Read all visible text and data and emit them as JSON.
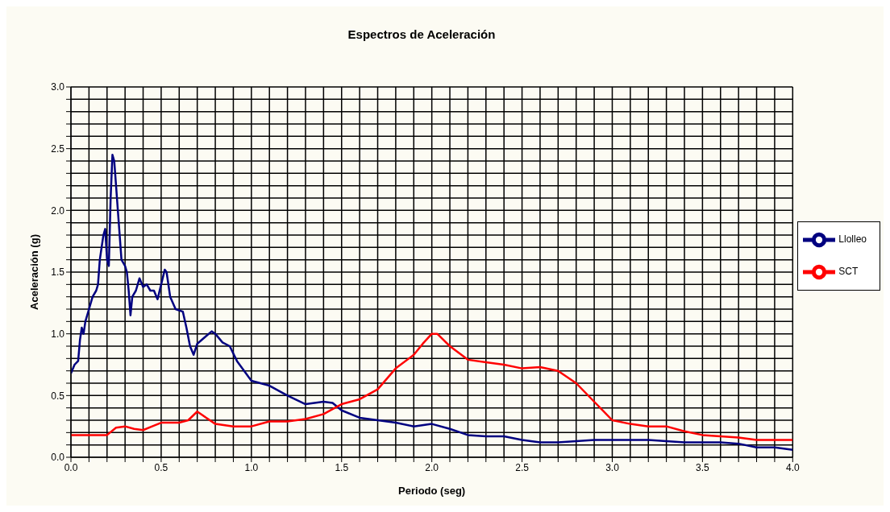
{
  "chart_data": {
    "type": "line",
    "title": "Espectros de Aceleración",
    "xlabel": "Periodo (seg)",
    "ylabel": "Aceleración (g)",
    "xlim": [
      0,
      4
    ],
    "ylim": [
      0,
      3
    ],
    "xticks": [
      {
        "value": 0,
        "label": "0.0"
      },
      {
        "value": 0.1,
        "label": null
      },
      {
        "value": 0.2,
        "label": null
      },
      {
        "value": 0.3,
        "label": null
      },
      {
        "value": 0.4,
        "label": null
      },
      {
        "value": 0.5,
        "label": "0.5"
      },
      {
        "value": 0.6,
        "label": null
      },
      {
        "value": 0.7,
        "label": null
      },
      {
        "value": 0.8,
        "label": null
      },
      {
        "value": 0.9,
        "label": null
      },
      {
        "value": 1,
        "label": "1.0"
      },
      {
        "value": 1.1,
        "label": null
      },
      {
        "value": 1.2,
        "label": null
      },
      {
        "value": 1.3,
        "label": null
      },
      {
        "value": 1.4,
        "label": null
      },
      {
        "value": 1.5,
        "label": "1.5"
      },
      {
        "value": 1.6,
        "label": null
      },
      {
        "value": 1.7,
        "label": null
      },
      {
        "value": 1.8,
        "label": null
      },
      {
        "value": 1.9,
        "label": null
      },
      {
        "value": 2,
        "label": "2.0"
      },
      {
        "value": 2.1,
        "label": null
      },
      {
        "value": 2.2,
        "label": null
      },
      {
        "value": 2.3,
        "label": null
      },
      {
        "value": 2.4,
        "label": null
      },
      {
        "value": 2.5,
        "label": "2.5"
      },
      {
        "value": 2.6,
        "label": null
      },
      {
        "value": 2.7,
        "label": null
      },
      {
        "value": 2.8,
        "label": null
      },
      {
        "value": 2.9,
        "label": null
      },
      {
        "value": 3,
        "label": "3.0"
      },
      {
        "value": 3.1,
        "label": null
      },
      {
        "value": 3.2,
        "label": null
      },
      {
        "value": 3.3,
        "label": null
      },
      {
        "value": 3.4,
        "label": null
      },
      {
        "value": 3.5,
        "label": "3.5"
      },
      {
        "value": 3.6,
        "label": null
      },
      {
        "value": 3.7,
        "label": null
      },
      {
        "value": 3.8,
        "label": null
      },
      {
        "value": 3.9,
        "label": null
      },
      {
        "value": 4,
        "label": "4.0"
      }
    ],
    "yticks": [
      {
        "value": 0,
        "label": "0.0"
      },
      {
        "value": 0.1,
        "label": null
      },
      {
        "value": 0.2,
        "label": null
      },
      {
        "value": 0.3,
        "label": null
      },
      {
        "value": 0.4,
        "label": null
      },
      {
        "value": 0.5,
        "label": "0.5"
      },
      {
        "value": 0.6,
        "label": null
      },
      {
        "value": 0.7,
        "label": null
      },
      {
        "value": 0.8,
        "label": null
      },
      {
        "value": 0.9,
        "label": null
      },
      {
        "value": 1,
        "label": "1.0"
      },
      {
        "value": 1.1,
        "label": null
      },
      {
        "value": 1.2,
        "label": null
      },
      {
        "value": 1.3,
        "label": null
      },
      {
        "value": 1.4,
        "label": null
      },
      {
        "value": 1.5,
        "label": "1.5"
      },
      {
        "value": 1.6,
        "label": null
      },
      {
        "value": 1.7,
        "label": null
      },
      {
        "value": 1.8,
        "label": null
      },
      {
        "value": 1.9,
        "label": null
      },
      {
        "value": 2,
        "label": "2.0"
      },
      {
        "value": 2.1,
        "label": null
      },
      {
        "value": 2.2,
        "label": null
      },
      {
        "value": 2.3,
        "label": null
      },
      {
        "value": 2.4,
        "label": null
      },
      {
        "value": 2.5,
        "label": "2.5"
      },
      {
        "value": 2.6,
        "label": null
      },
      {
        "value": 2.7,
        "label": null
      },
      {
        "value": 2.8,
        "label": null
      },
      {
        "value": 2.9,
        "label": null
      },
      {
        "value": 3,
        "label": "3.0"
      }
    ],
    "grid": true,
    "legend": "right",
    "marker": "none",
    "line_style": "solid",
    "series": [
      {
        "name": "Llolleo",
        "color": "#000080",
        "x": [
          0,
          0.02,
          0.04,
          0.05,
          0.06,
          0.07,
          0.08,
          0.1,
          0.12,
          0.14,
          0.15,
          0.16,
          0.18,
          0.19,
          0.2,
          0.21,
          0.22,
          0.23,
          0.24,
          0.25,
          0.26,
          0.27,
          0.28,
          0.3,
          0.31,
          0.32,
          0.33,
          0.34,
          0.36,
          0.38,
          0.4,
          0.42,
          0.44,
          0.46,
          0.48,
          0.5,
          0.52,
          0.53,
          0.55,
          0.58,
          0.62,
          0.64,
          0.66,
          0.68,
          0.7,
          0.74,
          0.78,
          0.8,
          0.84,
          0.88,
          0.92,
          0.96,
          1,
          1.1,
          1.2,
          1.3,
          1.4,
          1.45,
          1.5,
          1.6,
          1.7,
          1.8,
          1.9,
          2,
          2.1,
          2.2,
          2.3,
          2.4,
          2.5,
          2.6,
          2.7,
          2.8,
          2.9,
          3,
          3.2,
          3.3,
          3.4,
          3.6,
          3.7,
          3.8,
          3.9,
          4
        ],
        "values": [
          0.68,
          0.75,
          0.78,
          0.95,
          1.05,
          1,
          1.1,
          1.2,
          1.3,
          1.35,
          1.4,
          1.6,
          1.8,
          1.85,
          1.6,
          1.55,
          2.1,
          2.45,
          2.4,
          2.2,
          2,
          1.8,
          1.6,
          1.55,
          1.5,
          1.35,
          1.15,
          1.3,
          1.35,
          1.45,
          1.38,
          1.4,
          1.35,
          1.35,
          1.28,
          1.4,
          1.52,
          1.5,
          1.3,
          1.2,
          1.18,
          1.05,
          0.9,
          0.83,
          0.92,
          0.97,
          1.02,
          1,
          0.93,
          0.9,
          0.78,
          0.7,
          0.62,
          0.58,
          0.5,
          0.43,
          0.45,
          0.44,
          0.38,
          0.32,
          0.3,
          0.28,
          0.25,
          0.27,
          0.23,
          0.18,
          0.17,
          0.17,
          0.14,
          0.12,
          0.12,
          0.13,
          0.14,
          0.14,
          0.14,
          0.13,
          0.12,
          0.12,
          0.11,
          0.08,
          0.08,
          0.06
        ]
      },
      {
        "name": "SCT",
        "color": "#ff0000",
        "x": [
          0,
          0.2,
          0.25,
          0.3,
          0.35,
          0.4,
          0.45,
          0.5,
          0.6,
          0.65,
          0.7,
          0.75,
          0.8,
          0.9,
          1,
          1.1,
          1.2,
          1.3,
          1.4,
          1.5,
          1.6,
          1.7,
          1.8,
          1.9,
          1.95,
          2,
          2.03,
          2.1,
          2.2,
          2.3,
          2.4,
          2.5,
          2.6,
          2.7,
          2.8,
          2.9,
          3,
          3.1,
          3.2,
          3.3,
          3.4,
          3.5,
          3.6,
          3.7,
          3.8,
          4
        ],
        "values": [
          0.18,
          0.18,
          0.24,
          0.25,
          0.23,
          0.22,
          0.25,
          0.28,
          0.28,
          0.3,
          0.37,
          0.32,
          0.27,
          0.25,
          0.25,
          0.29,
          0.29,
          0.31,
          0.35,
          0.43,
          0.47,
          0.55,
          0.72,
          0.83,
          0.92,
          1,
          1,
          0.9,
          0.79,
          0.77,
          0.75,
          0.72,
          0.73,
          0.7,
          0.6,
          0.45,
          0.3,
          0.27,
          0.25,
          0.25,
          0.21,
          0.18,
          0.17,
          0.16,
          0.14,
          0.14
        ]
      }
    ]
  }
}
